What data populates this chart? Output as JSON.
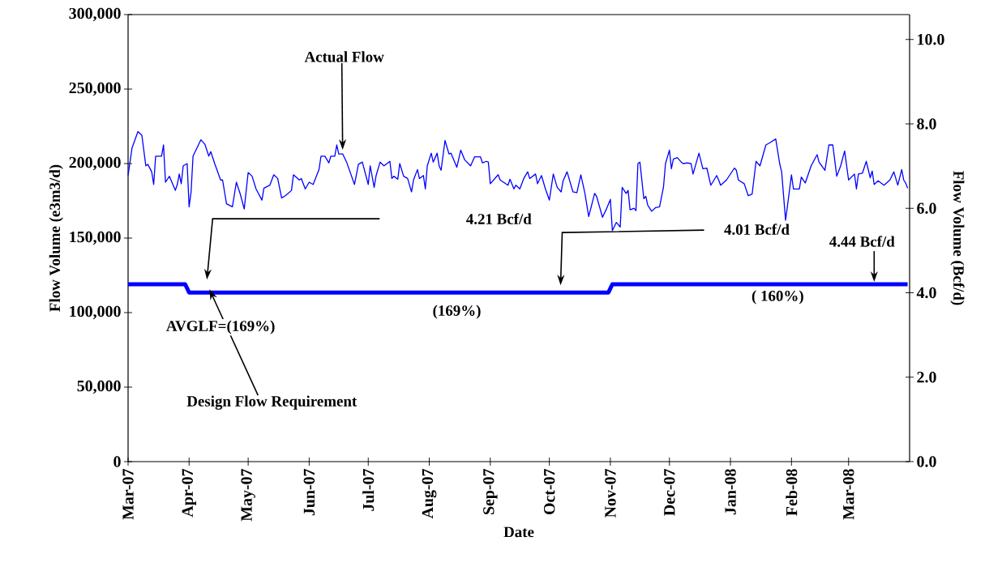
{
  "chart_data": {
    "type": "line",
    "xlabel": "Date",
    "ylabel": "Flow Volume (e3m3/d)",
    "y2label": "Flow Volume (Bcf/d)",
    "line_style": "solid",
    "xlim": [
      "2007-03-01",
      "2008-04-01"
    ],
    "xticks": [
      {
        "value": "2007-03-01",
        "label": "Mar-07"
      },
      {
        "value": "2007-04-01",
        "label": "Apr-07"
      },
      {
        "value": "2007-05-01",
        "label": "May-07"
      },
      {
        "value": "2007-06-01",
        "label": "Jun-07"
      },
      {
        "value": "2007-07-01",
        "label": "Jul-07"
      },
      {
        "value": "2007-08-01",
        "label": "Aug-07"
      },
      {
        "value": "2007-09-01",
        "label": "Sep-07"
      },
      {
        "value": "2007-10-01",
        "label": "Oct-07"
      },
      {
        "value": "2007-11-01",
        "label": "Nov-07"
      },
      {
        "value": "2007-12-01",
        "label": "Dec-07"
      },
      {
        "value": "2008-01-01",
        "label": "Jan-08"
      },
      {
        "value": "2008-02-01",
        "label": "Feb-08"
      },
      {
        "value": "2008-03-01",
        "label": "Mar-08"
      }
    ],
    "ylim": [
      0,
      300000
    ],
    "yticks": [
      0,
      {
        "value": 50000,
        "label": "50,000"
      },
      {
        "value": 100000,
        "label": "100,000"
      },
      {
        "value": 150000,
        "label": "150,000"
      },
      {
        "value": 200000,
        "label": "200,000"
      },
      {
        "value": 250000,
        "label": "250,000"
      },
      {
        "value": 300000,
        "label": "300,000"
      }
    ],
    "y2lim": [
      0,
      10.59
    ],
    "y2ticks": [
      {
        "value": 0,
        "label": "0.0"
      },
      {
        "value": 2,
        "label": "2.0"
      },
      {
        "value": 4,
        "label": "4.0"
      },
      {
        "value": 6,
        "label": "6.0"
      },
      {
        "value": 8,
        "label": "8.0"
      },
      {
        "value": 10,
        "label": "10.0"
      }
    ],
    "series": [
      {
        "name": "Actual Flow",
        "color": "#0000ff",
        "x": [
          "2007-03-01",
          "2007-03-03",
          "2007-03-06",
          "2007-03-08",
          "2007-03-10",
          "2007-03-11",
          "2007-03-13",
          "2007-03-14",
          "2007-03-15",
          "2007-03-18",
          "2007-03-19",
          "2007-03-20",
          "2007-03-22",
          "2007-03-25",
          "2007-03-26",
          "2007-03-27",
          "2007-03-28",
          "2007-03-29",
          "2007-03-31",
          "2007-04-01",
          "2007-04-02",
          "2007-04-03",
          "2007-04-07",
          "2007-04-09",
          "2007-04-11",
          "2007-04-12",
          "2007-04-14",
          "2007-04-17",
          "2007-04-18",
          "2007-04-20",
          "2007-04-23",
          "2007-04-25",
          "2007-04-27",
          "2007-04-29",
          "2007-05-01",
          "2007-05-03",
          "2007-05-05",
          "2007-05-08",
          "2007-05-09",
          "2007-05-12",
          "2007-05-14",
          "2007-05-16",
          "2007-05-18",
          "2007-05-20",
          "2007-05-23",
          "2007-05-24",
          "2007-05-27",
          "2007-05-28",
          "2007-05-30",
          "2007-06-01",
          "2007-06-03",
          "2007-06-06",
          "2007-06-07",
          "2007-06-09",
          "2007-06-11",
          "2007-06-12",
          "2007-06-14",
          "2007-06-15",
          "2007-06-16",
          "2007-06-18",
          "2007-06-20",
          "2007-06-24",
          "2007-06-26",
          "2007-06-28",
          "2007-07-01",
          "2007-07-02",
          "2007-07-04",
          "2007-07-05",
          "2007-07-07",
          "2007-07-09",
          "2007-07-12",
          "2007-07-13",
          "2007-07-14",
          "2007-07-16",
          "2007-07-17",
          "2007-07-19",
          "2007-07-21",
          "2007-07-23",
          "2007-07-24",
          "2007-07-26",
          "2007-07-27",
          "2007-07-29",
          "2007-07-30",
          "2007-07-31",
          "2007-08-02",
          "2007-08-03",
          "2007-08-05",
          "2007-08-06",
          "2007-08-07",
          "2007-08-09",
          "2007-08-11",
          "2007-08-12",
          "2007-08-15",
          "2007-08-17",
          "2007-08-19",
          "2007-08-22",
          "2007-08-24",
          "2007-08-27",
          "2007-08-28",
          "2007-08-30",
          "2007-08-31",
          "2007-09-01",
          "2007-09-05",
          "2007-09-06",
          "2007-09-10",
          "2007-09-11",
          "2007-09-13",
          "2007-09-14",
          "2007-09-16",
          "2007-09-18",
          "2007-09-20",
          "2007-09-21",
          "2007-09-24",
          "2007-09-25",
          "2007-09-27",
          "2007-09-29",
          "2007-10-01",
          "2007-10-03",
          "2007-10-05",
          "2007-10-07",
          "2007-10-08",
          "2007-10-10",
          "2007-10-13",
          "2007-10-15",
          "2007-10-17",
          "2007-10-19",
          "2007-10-21",
          "2007-10-24",
          "2007-10-25",
          "2007-10-28",
          "2007-10-30",
          "2007-11-01",
          "2007-11-02",
          "2007-11-04",
          "2007-11-06",
          "2007-11-07",
          "2007-11-09",
          "2007-11-10",
          "2007-11-11",
          "2007-11-13",
          "2007-11-14",
          "2007-11-15",
          "2007-11-16",
          "2007-11-18",
          "2007-11-19",
          "2007-11-20",
          "2007-11-22",
          "2007-11-24",
          "2007-11-26",
          "2007-11-28",
          "2007-11-29",
          "2007-12-01",
          "2007-12-02",
          "2007-12-03",
          "2007-12-05",
          "2007-12-07",
          "2007-12-08",
          "2007-12-10",
          "2007-12-12",
          "2007-12-13",
          "2007-12-16",
          "2007-12-18",
          "2007-12-20",
          "2007-12-22",
          "2007-12-23",
          "2007-12-25",
          "2007-12-26",
          "2007-12-27",
          "2007-12-30",
          "2008-01-03",
          "2008-01-04",
          "2008-01-05",
          "2008-01-08",
          "2008-01-10",
          "2008-01-12",
          "2008-01-14",
          "2008-01-16",
          "2008-01-19",
          "2008-01-21",
          "2008-01-24",
          "2008-01-26",
          "2008-01-27",
          "2008-01-29",
          "2008-01-30",
          "2008-02-01",
          "2008-02-02",
          "2008-02-05",
          "2008-02-06",
          "2008-02-08",
          "2008-02-11",
          "2008-02-14",
          "2008-02-15",
          "2008-02-18",
          "2008-02-20",
          "2008-02-22",
          "2008-02-24",
          "2008-02-26",
          "2008-02-28",
          "2008-03-01",
          "2008-03-04",
          "2008-03-05",
          "2008-03-06",
          "2008-03-08",
          "2008-03-10",
          "2008-03-12",
          "2008-03-13",
          "2008-03-14",
          "2008-03-16",
          "2008-03-19",
          "2008-03-22",
          "2008-03-24",
          "2008-03-26",
          "2008-03-28",
          "2008-03-29",
          "2008-03-30",
          "2008-03-31"
        ],
        "values": [
          192000,
          210500,
          221500,
          219000,
          198500,
          199500,
          194500,
          186000,
          205000,
          205000,
          212500,
          187500,
          191500,
          182000,
          186000,
          193000,
          186500,
          198500,
          200000,
          171000,
          181000,
          205000,
          216000,
          213000,
          205000,
          208000,
          200000,
          189000,
          189000,
          173000,
          171000,
          187500,
          179500,
          169500,
          194000,
          191500,
          183000,
          175500,
          183500,
          185500,
          192500,
          190000,
          177000,
          178500,
          182000,
          192500,
          189000,
          190000,
          183000,
          187500,
          186000,
          196000,
          205000,
          205000,
          200500,
          205000,
          205000,
          212500,
          206500,
          206500,
          201000,
          186000,
          199500,
          201000,
          186000,
          198500,
          184000,
          192000,
          201000,
          198500,
          201500,
          190000,
          191500,
          189500,
          200000,
          191500,
          190000,
          181000,
          189000,
          196000,
          190000,
          192000,
          183000,
          198500,
          207000,
          201000,
          207000,
          198500,
          195500,
          215500,
          206500,
          207000,
          197500,
          209000,
          202500,
          198500,
          204500,
          204500,
          200500,
          201500,
          201000,
          186500,
          192500,
          189000,
          185500,
          189500,
          183000,
          185500,
          183000,
          190000,
          194500,
          190000,
          193000,
          186500,
          192000,
          183000,
          175500,
          193000,
          184000,
          181000,
          188500,
          194500,
          181000,
          180500,
          192500,
          180500,
          164500,
          180000,
          178000,
          164000,
          169500,
          176000,
          155000,
          160500,
          157500,
          184000,
          180000,
          182000,
          169000,
          170000,
          168500,
          200000,
          201000,
          176500,
          178000,
          172000,
          168000,
          170500,
          171000,
          184500,
          200000,
          209000,
          196500,
          203000,
          204000,
          201000,
          200000,
          200500,
          200000,
          193000,
          207000,
          196500,
          197000,
          185500,
          187500,
          192000,
          189000,
          185500,
          189000,
          197000,
          195500,
          189000,
          186500,
          178500,
          179500,
          201500,
          198500,
          212500,
          214000,
          216500,
          200000,
          194500,
          162000,
          172000,
          192500,
          183000,
          183000,
          191000,
          187000,
          198500,
          206000,
          201000,
          195500,
          212500,
          212500,
          191500,
          198500,
          208500,
          189000,
          193000,
          183000,
          193000,
          193500,
          201500,
          190500,
          195000,
          186000,
          188500,
          185500,
          189000,
          194500,
          185500,
          196000,
          189000,
          187000,
          183500
        ]
      },
      {
        "name": "Design Flow Requirement",
        "color": "#0000ff",
        "x": [
          "2007-03-01",
          "2007-03-30",
          "2007-04-01",
          "2007-10-31",
          "2007-11-02",
          "2008-03-31"
        ],
        "values": [
          119000,
          119000,
          113500,
          113500,
          119000,
          119000
        ]
      }
    ],
    "annotations": [
      "4.21 Bcf/d",
      "4.01 Bcf/d",
      {
        "text": "4.44 Bcf/d",
        "x": "2008-03-14",
        "y": 119000
      },
      {
        "text": "AVGLF=(169%)",
        "x": "2007-04-17",
        "y": 113500
      },
      {
        "text": "(169%)",
        "x": "2007-08-15",
        "y": 113500
      },
      {
        "text": "( 160%)",
        "x": "2008-01-25",
        "y": 119000
      }
    ]
  }
}
